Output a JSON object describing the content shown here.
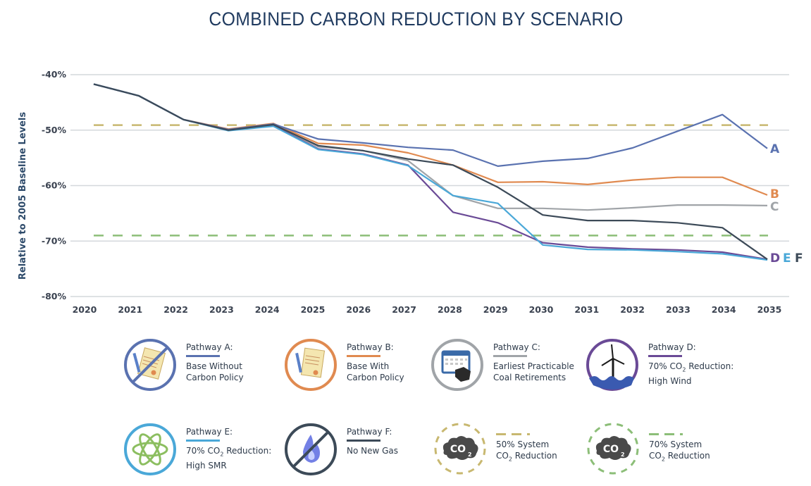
{
  "chart_data": {
    "type": "line",
    "title": "COMBINED CARBON REDUCTION BY SCENARIO",
    "xlabel": "",
    "ylabel": "Relative to 2005 Baseline Levels",
    "ylim": [
      -80,
      -40
    ],
    "yticks": [
      "-40%",
      "-50%",
      "-60%",
      "-70%",
      "-80%"
    ],
    "ytick_values": [
      -40,
      -50,
      -60,
      -70,
      -80
    ],
    "x": [
      2020,
      2021,
      2022,
      2023,
      2024,
      2025,
      2026,
      2027,
      2028,
      2029,
      2030,
      2031,
      2032,
      2033,
      2034,
      2035
    ],
    "xtick_labels": [
      "2020",
      "2021",
      "2022",
      "2023",
      "2024",
      "2025",
      "2026",
      "2027",
      "2028",
      "2029",
      "2030",
      "2031",
      "2032",
      "2033",
      "2034",
      "2035"
    ],
    "grid": true,
    "legend_placement": "bottom",
    "series": [
      {
        "name": "Pathway A",
        "end_label": "A",
        "color": "#5a72b0",
        "values": [
          -41.7,
          -43.8,
          -48.1,
          -49.9,
          -48.9,
          -51.6,
          -52.3,
          -53.1,
          -53.6,
          -56.5,
          -55.6,
          -55.1,
          -53.2,
          -50.2,
          -47.2,
          -53.3
        ]
      },
      {
        "name": "Pathway B",
        "end_label": "B",
        "color": "#e08a50",
        "values": [
          -41.7,
          -43.8,
          -48.1,
          -49.8,
          -48.8,
          -52.4,
          -52.7,
          -54.1,
          -56.3,
          -59.4,
          -59.3,
          -59.8,
          -59.0,
          -58.5,
          -58.5,
          -61.7
        ]
      },
      {
        "name": "Pathway C",
        "end_label": "C",
        "color": "#a0a4a8",
        "values": [
          -41.7,
          -43.8,
          -48.1,
          -50.0,
          -49.1,
          -53.0,
          -53.7,
          -55.5,
          -61.8,
          -64.1,
          -64.1,
          -64.4,
          -64.0,
          -63.5,
          -63.5,
          -63.6
        ]
      },
      {
        "name": "Pathway D",
        "end_label": "D",
        "color": "#6a4a96",
        "values": [
          -41.7,
          -43.8,
          -48.1,
          -50.0,
          -49.2,
          -53.4,
          -54.3,
          -56.3,
          -64.8,
          -66.7,
          -70.3,
          -71.1,
          -71.4,
          -71.6,
          -72.0,
          -73.3
        ]
      },
      {
        "name": "Pathway E",
        "end_label": "E",
        "color": "#4aa8d8",
        "values": [
          -41.7,
          -43.8,
          -48.1,
          -50.1,
          -49.3,
          -53.5,
          -54.4,
          -56.4,
          -61.8,
          -63.2,
          -70.7,
          -71.5,
          -71.6,
          -71.9,
          -72.3,
          -73.4
        ]
      },
      {
        "name": "Pathway F",
        "end_label": "F",
        "color": "#3c4a58",
        "values": [
          -41.7,
          -43.8,
          -48.1,
          -50.0,
          -49.0,
          -52.8,
          -53.7,
          -55.2,
          -56.3,
          -60.3,
          -65.3,
          -66.3,
          -66.3,
          -66.7,
          -67.6,
          -73.3
        ]
      }
    ],
    "reference_lines": [
      {
        "name": "50% System CO2 Reduction",
        "value": -49.1,
        "color": "#c8b870",
        "style": "dashed"
      },
      {
        "name": "70% System CO2 Reduction",
        "value": -69.0,
        "color": "#8cbe78",
        "style": "dashed"
      }
    ]
  },
  "legend": {
    "items": [
      {
        "key": "A",
        "title": "Pathway A:",
        "desc": "Base Without\nCarbon Policy",
        "icon": "no-document-icon",
        "color": "#5a72b0"
      },
      {
        "key": "B",
        "title": "Pathway B:",
        "desc": "Base With\nCarbon Policy",
        "icon": "document-icon",
        "color": "#e08a50"
      },
      {
        "key": "C",
        "title": "Pathway C:",
        "desc": "Earliest Practicable\nCoal Retirements",
        "icon": "calendar-coal-icon",
        "color": "#a0a4a8"
      },
      {
        "key": "D",
        "title": "Pathway D:",
        "desc_pre": "70% CO",
        "desc_sub": "2",
        "desc_post": " Reduction:\nHigh Wind",
        "icon": "wind-turbine-icon",
        "color": "#6a4a96"
      },
      {
        "key": "E",
        "title": "Pathway E:",
        "desc_pre": "70% CO",
        "desc_sub": "2",
        "desc_post": " Reduction:\nHigh SMR",
        "icon": "atom-icon",
        "color": "#4aa8d8"
      },
      {
        "key": "F",
        "title": "Pathway F:",
        "desc": "No New Gas",
        "icon": "no-gas-flame-icon",
        "color": "#3c4a58"
      },
      {
        "key": "50",
        "line1": "50% System",
        "line2_pre": "CO",
        "line2_sub": "2",
        "line2_post": " Reduction",
        "icon": "co2-cloud-icon",
        "color": "#c8b870"
      },
      {
        "key": "70",
        "line1": "70% System",
        "line2_pre": "CO",
        "line2_sub": "2",
        "line2_post": " Reduction",
        "icon": "co2-cloud-icon",
        "color": "#8cbe78"
      }
    ],
    "co2_text": "CO",
    "co2_sub": "2"
  }
}
